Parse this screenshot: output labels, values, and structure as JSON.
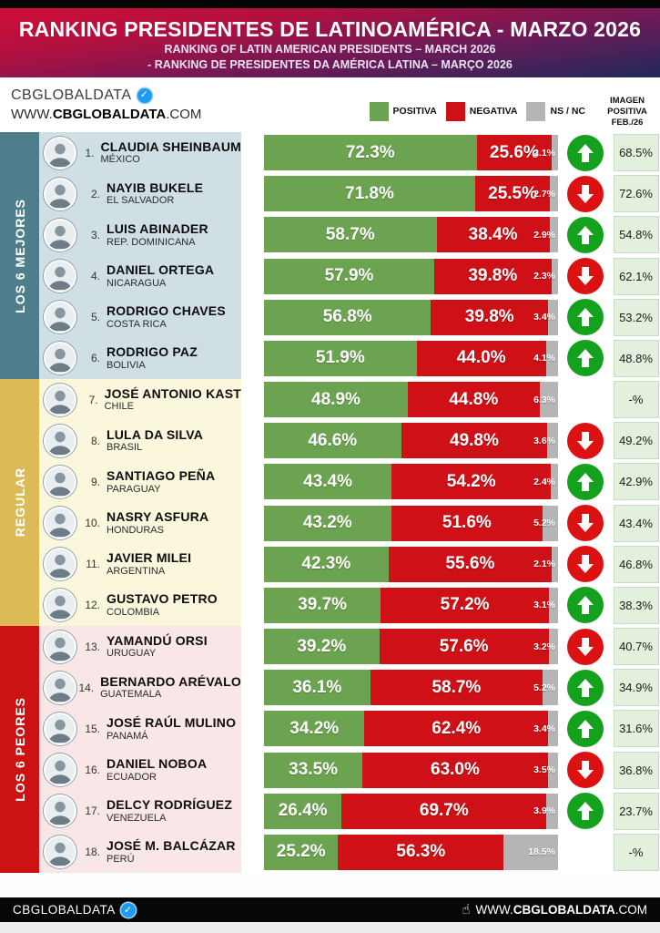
{
  "header": {
    "title": "RANKING PRESIDENTES DE LATINOAMÉRICA - MARZO 2026",
    "subtitle_en": "RANKING OF LATIN AMERICAN PRESIDENTS – MARCH 2026",
    "subtitle_pt": "- RANKING DE PRESIDENTES DA AMÉRICA LATINA – MARÇO 2026"
  },
  "brand": {
    "name": "CBGLOBALDATA",
    "verified_badge": "verified-check",
    "url_prefix": "WWW.",
    "url_brand": "CBGLOBALDATA",
    "url_suffix": ".COM"
  },
  "legend": {
    "items": [
      {
        "label": "POSITIVA",
        "color": "#6ca350"
      },
      {
        "label": "NEGATIVA",
        "color": "#cf1016"
      },
      {
        "label": "NS / NC",
        "color": "#b5b5b5"
      }
    ]
  },
  "prev_column_header": "IMAGEN\nPOSITIVA\nFEB./26",
  "colors": {
    "positive_bar": "#6ca350",
    "negative_bar": "#cf1016",
    "nsnc_bar": "#b5b5b5",
    "arrow_up": "#14a21e",
    "arrow_down": "#dc1212",
    "prev_cell_bg": "#e3f0dd"
  },
  "sections": [
    {
      "label": "LOS 6 MEJORES",
      "theme": "best",
      "colors": {
        "side_bg": "#4e7e8b",
        "row_bg": "#cfdfe3"
      },
      "rows": [
        {
          "rank": "1",
          "name": "CLAUDIA SHEINBAUM",
          "country": "MÉXICO",
          "pos": 72.3,
          "neg": 25.6,
          "ns": 2.1,
          "trend": "up",
          "prev": "68.5%"
        },
        {
          "rank": "2",
          "name": "NAYIB BUKELE",
          "country": "EL SALVADOR",
          "pos": 71.8,
          "neg": 25.5,
          "ns": 2.7,
          "trend": "down",
          "prev": "72.6%"
        },
        {
          "rank": "3",
          "name": "LUIS ABINADER",
          "country": "REP. DOMINICANA",
          "pos": 58.7,
          "neg": 38.4,
          "ns": 2.9,
          "trend": "up",
          "prev": "54.8%"
        },
        {
          "rank": "4",
          "name": "DANIEL ORTEGA",
          "country": "NICARAGUA",
          "pos": 57.9,
          "neg": 39.8,
          "ns": 2.3,
          "trend": "down",
          "prev": "62.1%"
        },
        {
          "rank": "5",
          "name": "RODRIGO CHAVES",
          "country": "COSTA RICA",
          "pos": 56.8,
          "neg": 39.8,
          "ns": 3.4,
          "trend": "up",
          "prev": "53.2%"
        },
        {
          "rank": "6",
          "name": "RODRIGO PAZ",
          "country": "BOLIVIA",
          "pos": 51.9,
          "neg": 44.0,
          "ns": 4.1,
          "trend": "up",
          "prev": "48.8%"
        }
      ]
    },
    {
      "label": "REGULAR",
      "theme": "regular",
      "colors": {
        "side_bg": "#dcba55",
        "row_bg": "#faf7dc"
      },
      "rows": [
        {
          "rank": "7",
          "name": "JOSÉ ANTONIO KAST",
          "country": "CHILE",
          "pos": 48.9,
          "neg": 44.8,
          "ns": 6.3,
          "trend": null,
          "prev": "-%"
        },
        {
          "rank": "8",
          "name": "LULA DA SILVA",
          "country": "BRASIL",
          "pos": 46.6,
          "neg": 49.8,
          "ns": 3.6,
          "trend": "down",
          "prev": "49.2%"
        },
        {
          "rank": "9",
          "name": "SANTIAGO PEÑA",
          "country": "PARAGUAY",
          "pos": 43.4,
          "neg": 54.2,
          "ns": 2.4,
          "trend": "up",
          "prev": "42.9%"
        },
        {
          "rank": "10",
          "name": "NASRY ASFURA",
          "country": "HONDURAS",
          "pos": 43.2,
          "neg": 51.6,
          "ns": 5.2,
          "trend": "down",
          "prev": "43.4%"
        },
        {
          "rank": "11",
          "name": "JAVIER MILEI",
          "country": "ARGENTINA",
          "pos": 42.3,
          "neg": 55.6,
          "ns": 2.1,
          "trend": "down",
          "prev": "46.8%"
        },
        {
          "rank": "12",
          "name": "GUSTAVO PETRO",
          "country": "COLOMBIA",
          "pos": 39.7,
          "neg": 57.2,
          "ns": 3.1,
          "trend": "up",
          "prev": "38.3%"
        }
      ]
    },
    {
      "label": "LOS 6 PEORES",
      "theme": "worst",
      "colors": {
        "side_bg": "#cc1212",
        "row_bg": "#f9e6e6"
      },
      "rows": [
        {
          "rank": "13",
          "name": "YAMANDÚ ORSI",
          "country": "URUGUAY",
          "pos": 39.2,
          "neg": 57.6,
          "ns": 3.2,
          "trend": "down",
          "prev": "40.7%"
        },
        {
          "rank": "14",
          "name": "BERNARDO ARÉVALO",
          "country": "GUATEMALA",
          "pos": 36.1,
          "neg": 58.7,
          "ns": 5.2,
          "trend": "up",
          "prev": "34.9%"
        },
        {
          "rank": "15",
          "name": "JOSÉ RAÚL MULINO",
          "country": "PANAMÁ",
          "pos": 34.2,
          "neg": 62.4,
          "ns": 3.4,
          "trend": "up",
          "prev": "31.6%"
        },
        {
          "rank": "16",
          "name": "DANIEL NOBOA",
          "country": "ECUADOR",
          "pos": 33.5,
          "neg": 63.0,
          "ns": 3.5,
          "trend": "down",
          "prev": "36.8%"
        },
        {
          "rank": "17",
          "name": "DELCY RODRÍGUEZ",
          "country": "VENEZUELA",
          "pos": 26.4,
          "neg": 69.7,
          "ns": 3.9,
          "trend": "up",
          "prev": "23.7%"
        },
        {
          "rank": "18",
          "name": "JOSÉ M. BALCÁZAR",
          "country": "PERÚ",
          "pos": 25.2,
          "neg": 56.3,
          "ns": 18.5,
          "trend": null,
          "prev": "-%"
        }
      ]
    }
  ],
  "footer": {
    "brand": "CBGLOBALDATA",
    "url_prefix": "WWW.",
    "url_brand": "CBGLOBALDATA",
    "url_suffix": ".COM"
  },
  "chart_data": {
    "type": "bar",
    "stacked": true,
    "orientation": "horizontal",
    "title": "RANKING PRESIDENTES DE LATINOAMÉRICA - MARZO 2026",
    "subtitle": "RANKING OF LATIN AMERICAN PRESIDENTS – MARCH 2026 / RANKING DE PRESIDENTES DA AMÉRICA LATINA – MARÇO 2026",
    "xlim": [
      0,
      100
    ],
    "legend_position": "top",
    "categories": [
      "Claudia Sheinbaum (México)",
      "Nayib Bukele (El Salvador)",
      "Luis Abinader (Rep. Dominicana)",
      "Daniel Ortega (Nicaragua)",
      "Rodrigo Chaves (Costa Rica)",
      "Rodrigo Paz (Bolivia)",
      "José Antonio Kast (Chile)",
      "Lula da Silva (Brasil)",
      "Santiago Peña (Paraguay)",
      "Nasry Asfura (Honduras)",
      "Javier Milei (Argentina)",
      "Gustavo Petro (Colombia)",
      "Yamandú Orsi (Uruguay)",
      "Bernardo Arévalo (Guatemala)",
      "José Raúl Mulino (Panamá)",
      "Daniel Noboa (Ecuador)",
      "Delcy Rodríguez (Venezuela)",
      "José M. Balcázar (Perú)"
    ],
    "series": [
      {
        "name": "Positiva",
        "values": [
          72.3,
          71.8,
          58.7,
          57.9,
          56.8,
          51.9,
          48.9,
          46.6,
          43.4,
          43.2,
          42.3,
          39.7,
          39.2,
          36.1,
          34.2,
          33.5,
          26.4,
          25.2
        ]
      },
      {
        "name": "Negativa",
        "values": [
          25.6,
          25.5,
          38.4,
          39.8,
          39.8,
          44.0,
          44.8,
          49.8,
          54.2,
          51.6,
          55.6,
          57.2,
          57.6,
          58.7,
          62.4,
          63.0,
          69.7,
          56.3
        ]
      },
      {
        "name": "NS / NC",
        "values": [
          2.1,
          2.7,
          2.9,
          2.3,
          3.4,
          4.1,
          6.3,
          3.6,
          2.4,
          5.2,
          2.1,
          3.1,
          3.2,
          5.2,
          3.4,
          3.5,
          3.9,
          18.5
        ]
      },
      {
        "name": "Imagen positiva Feb./26",
        "values": [
          68.5,
          72.6,
          54.8,
          62.1,
          53.2,
          48.8,
          null,
          49.2,
          42.9,
          43.4,
          46.8,
          38.3,
          40.7,
          34.9,
          31.6,
          36.8,
          23.7,
          null
        ]
      }
    ],
    "trend_vs_previous": [
      "up",
      "down",
      "up",
      "down",
      "up",
      "up",
      null,
      "down",
      "up",
      "down",
      "down",
      "up",
      "down",
      "up",
      "up",
      "down",
      "up",
      null
    ],
    "groups": [
      "Los 6 Mejores: 1-6",
      "Regular: 7-12",
      "Los 6 Peores: 13-18"
    ]
  }
}
